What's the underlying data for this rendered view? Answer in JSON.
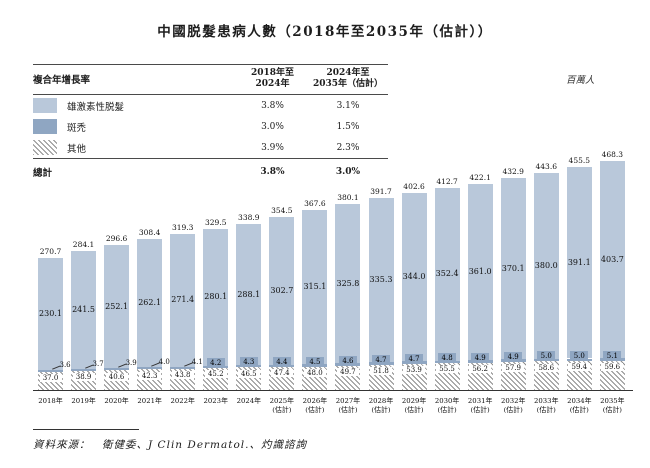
{
  "title": "中國脱髮患病人數（2018年至2035年（估計））",
  "unit_label": "百萬人",
  "cagr_table": {
    "header": {
      "label": "複合年增長率",
      "col1_line1": "2018年至",
      "col1_line2": "2024年",
      "col2_line1": "2024年至",
      "col2_line2": "2035年（估計）"
    },
    "rows": [
      {
        "swatch": "androgenetic-swatch",
        "label": "雄激素性脱髮",
        "c1": "3.8%",
        "c2": "3.1%"
      },
      {
        "swatch": "areata-swatch",
        "label": "斑禿",
        "c1": "3.0%",
        "c2": "1.5%"
      },
      {
        "swatch": "others-swatch",
        "label": "其他",
        "c1": "3.9%",
        "c2": "2.3%"
      }
    ],
    "total": {
      "label": "總計",
      "c1": "3.8%",
      "c2": "3.0%"
    }
  },
  "chart_data": {
    "type": "bar",
    "stacked": true,
    "title": "中國脱髮患病人數（2018年至2035年（估計））",
    "ylabel": "百萬人",
    "ylim": [
      0,
      480
    ],
    "grid": false,
    "categories": [
      "2018年",
      "2019年",
      "2020年",
      "2021年",
      "2022年",
      "2023年",
      "2024年",
      "2025年",
      "2026年",
      "2027年",
      "2028年",
      "2029年",
      "2030年",
      "2031年",
      "2032年",
      "2033年",
      "2034年",
      "2035年"
    ],
    "estimate_suffix": "(估計)",
    "estimate_from_index": 7,
    "stack_order_bottom_to_top": [
      "其他",
      "斑禿",
      "雄激素性脱髮"
    ],
    "series": [
      {
        "name": "雄激素性脱髮",
        "color": "#b9c8da",
        "values": [
          230.1,
          241.5,
          252.1,
          262.1,
          271.4,
          280.1,
          288.1,
          302.7,
          315.1,
          325.8,
          335.3,
          344.0,
          352.4,
          361.0,
          370.1,
          380.0,
          391.1,
          403.7
        ]
      },
      {
        "name": "斑禿",
        "color": "#8fa6c2",
        "values": [
          3.6,
          3.7,
          3.9,
          4.0,
          4.1,
          4.2,
          4.3,
          4.4,
          4.5,
          4.6,
          4.7,
          4.7,
          4.8,
          4.9,
          4.9,
          5.0,
          5.0,
          5.1
        ]
      },
      {
        "name": "其他",
        "color": "hatch",
        "values": [
          37.0,
          38.9,
          40.6,
          42.3,
          43.8,
          45.2,
          46.5,
          47.4,
          48.0,
          49.7,
          51.8,
          53.9,
          55.5,
          56.2,
          57.9,
          58.6,
          59.4,
          59.6
        ]
      }
    ],
    "totals": [
      270.7,
      284.1,
      296.6,
      308.4,
      319.3,
      329.5,
      338.9,
      354.5,
      367.6,
      380.1,
      391.7,
      402.6,
      412.7,
      422.1,
      432.9,
      443.6,
      455.5,
      468.3
    ]
  },
  "source": "資料來源：　衛健委、J Clin Dermatol.、灼識諮詢"
}
